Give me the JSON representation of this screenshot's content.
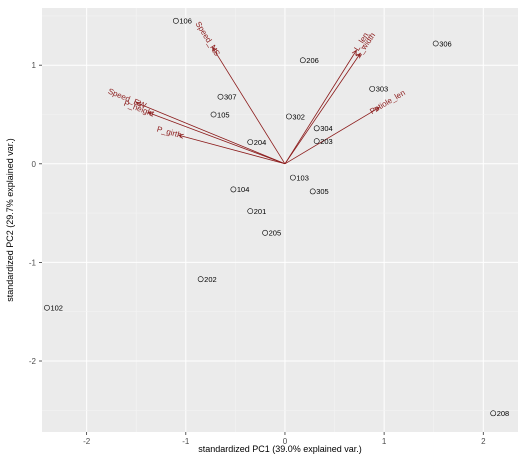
{
  "chart_data": {
    "type": "scatter",
    "xlabel": "standardized PC1 (39.0% explained var.)",
    "ylabel": "standardized PC2 (29.7% explained var.)",
    "xlim": [
      -2.45,
      2.35
    ],
    "ylim": [
      -2.72,
      1.58
    ],
    "x_ticks": [
      -2,
      -1,
      0,
      1,
      2
    ],
    "y_ticks": [
      -2,
      -1,
      0,
      1
    ],
    "x_tick_labels": [
      "-2",
      "-1",
      "0",
      "1",
      "2"
    ],
    "y_tick_labels": [
      "-2",
      "-1",
      "0",
      "1"
    ],
    "grid": true,
    "colors": {
      "panel": "#ebebeb",
      "grid_major": "#ffffff",
      "grid_minor": "#f4f4f4",
      "vector": "#8b1a1a",
      "point": "#000000"
    },
    "points": [
      {
        "label": "106",
        "x": -1.1,
        "y": 1.45
      },
      {
        "label": "206",
        "x": 0.18,
        "y": 1.05
      },
      {
        "label": "306",
        "x": 1.52,
        "y": 1.22
      },
      {
        "label": "307",
        "x": -0.65,
        "y": 0.68
      },
      {
        "label": "303",
        "x": 0.88,
        "y": 0.76
      },
      {
        "label": "105",
        "x": -0.72,
        "y": 0.5
      },
      {
        "label": "302",
        "x": 0.04,
        "y": 0.48
      },
      {
        "label": "304",
        "x": 0.32,
        "y": 0.36
      },
      {
        "label": "204",
        "x": -0.35,
        "y": 0.22
      },
      {
        "label": "203",
        "x": 0.32,
        "y": 0.23
      },
      {
        "label": "103",
        "x": 0.08,
        "y": -0.14
      },
      {
        "label": "305",
        "x": 0.28,
        "y": -0.28
      },
      {
        "label": "104",
        "x": -0.52,
        "y": -0.26
      },
      {
        "label": "201",
        "x": -0.35,
        "y": -0.48
      },
      {
        "label": "205",
        "x": -0.2,
        "y": -0.7
      },
      {
        "label": "202",
        "x": -0.85,
        "y": -1.17
      },
      {
        "label": "102",
        "x": -2.4,
        "y": -1.46
      },
      {
        "label": "208",
        "x": 2.1,
        "y": -2.53
      }
    ],
    "vectors": [
      {
        "label": "Speed_NS",
        "x": -0.73,
        "y": 1.18
      },
      {
        "label": "L_len",
        "x": 0.72,
        "y": 1.15
      },
      {
        "label": "L_width",
        "x": 0.76,
        "y": 1.12
      },
      {
        "label": "Petiole_len",
        "x": 0.95,
        "y": 0.57
      },
      {
        "label": "Speed_EW",
        "x": -1.5,
        "y": 0.62
      },
      {
        "label": "P_height",
        "x": -1.38,
        "y": 0.52
      },
      {
        "label": "P_girth",
        "x": -1.07,
        "y": 0.29
      }
    ]
  }
}
